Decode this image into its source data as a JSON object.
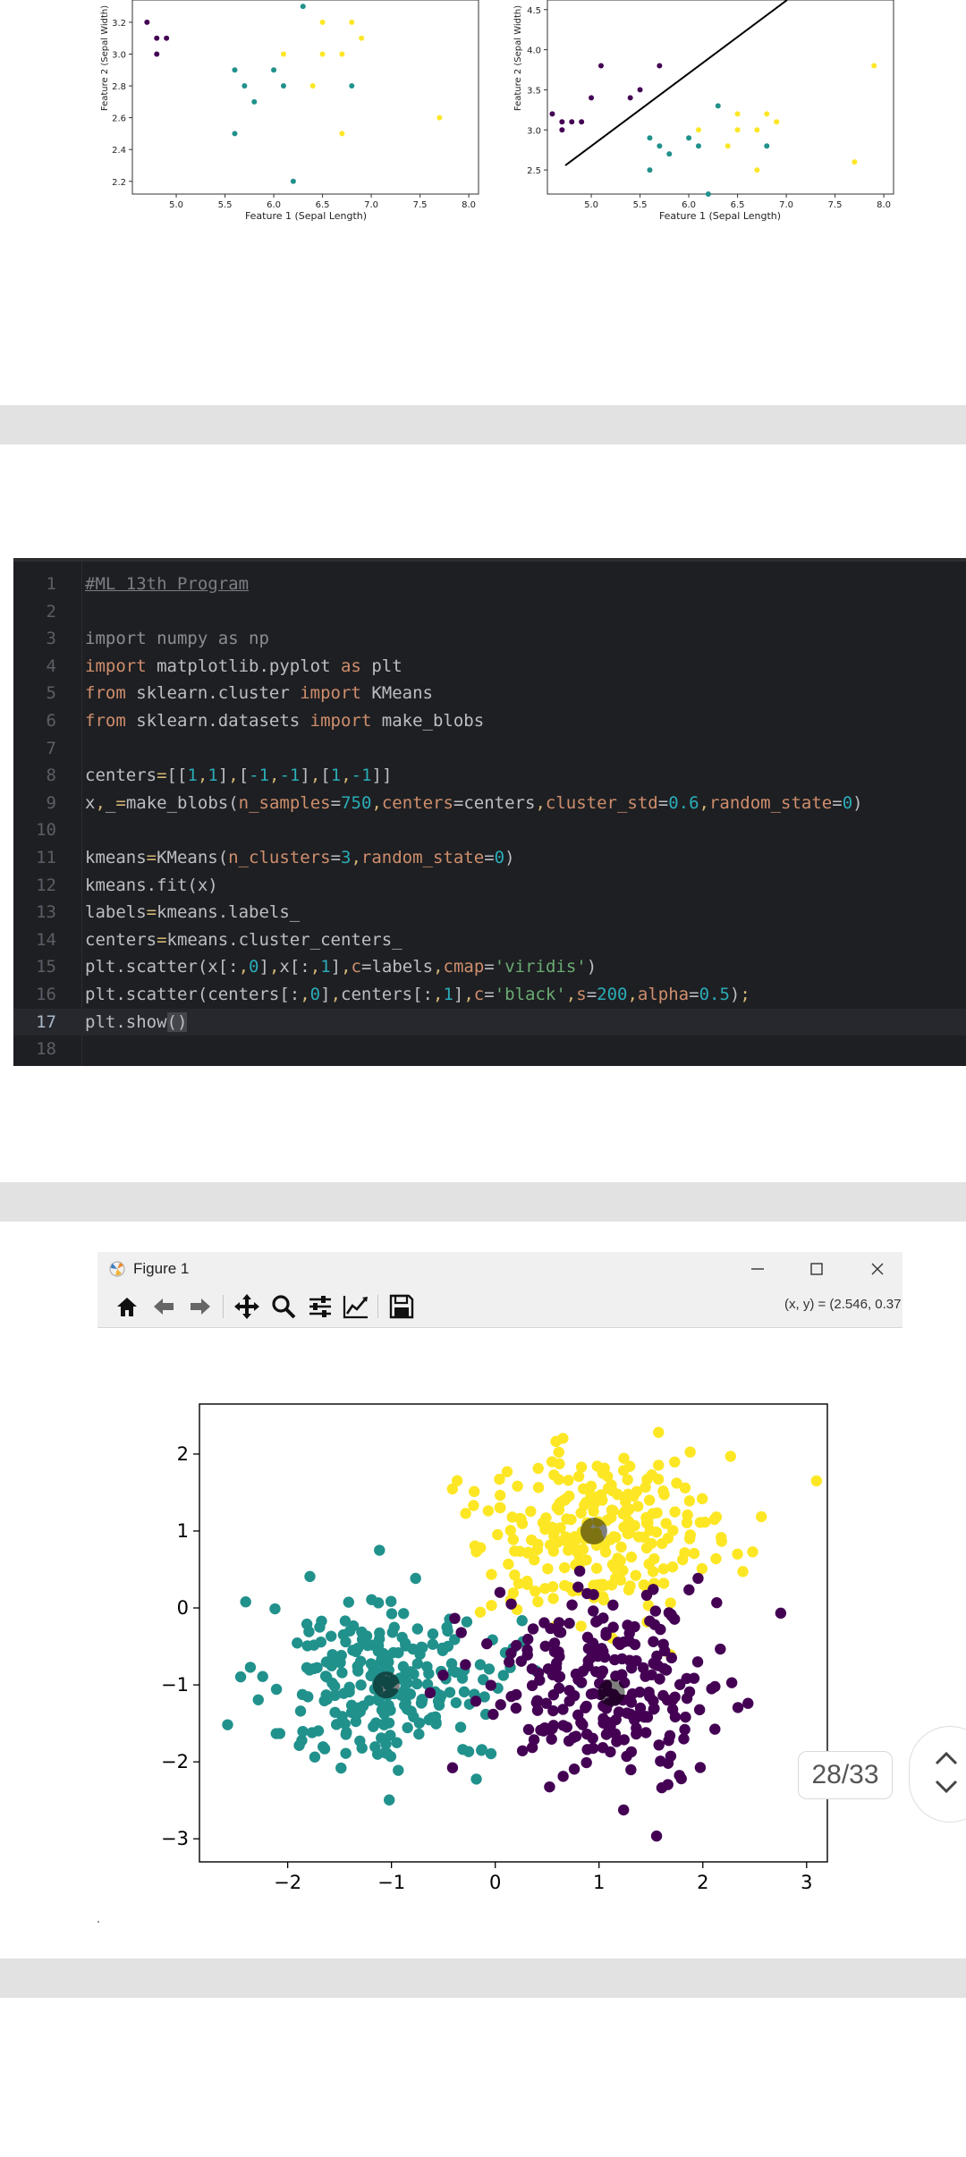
{
  "top_plots": {
    "left": {
      "xlabel": "Feature 1 (Sepal Length)",
      "ylabel": "Feature 2 (Sepal Width)",
      "xticks": [
        "5.0",
        "5.5",
        "6.0",
        "6.5",
        "7.0",
        "7.5",
        "8.0"
      ],
      "yticks": [
        "2.2",
        "2.4",
        "2.6",
        "2.8",
        "3.0",
        "3.2"
      ]
    },
    "right": {
      "xlabel": "Feature 1 (Sepal Length)",
      "ylabel": "Feature 2 (Sepal Width)",
      "xticks": [
        "5.0",
        "5.5",
        "6.0",
        "6.5",
        "7.0",
        "7.5",
        "8.0"
      ],
      "yticks": [
        "2.5",
        "3.0",
        "3.5",
        "4.0",
        "4.5"
      ]
    }
  },
  "editor": {
    "lines": [
      {
        "n": "1",
        "tokens": [
          {
            "t": "#ML 13th Program",
            "c": "t-c"
          }
        ]
      },
      {
        "n": "2",
        "tokens": []
      },
      {
        "n": "3",
        "tokens": [
          {
            "t": "import numpy as np",
            "c": "t-kw-dim"
          }
        ]
      },
      {
        "n": "4",
        "tokens": [
          {
            "t": "import",
            "c": "t-k"
          },
          {
            "t": " matplotlib.pyplot ",
            "c": ""
          },
          {
            "t": "as",
            "c": "t-k"
          },
          {
            "t": " plt",
            "c": ""
          }
        ]
      },
      {
        "n": "5",
        "tokens": [
          {
            "t": "from",
            "c": "t-k"
          },
          {
            "t": " sklearn.cluster ",
            "c": ""
          },
          {
            "t": "import",
            "c": "t-k"
          },
          {
            "t": " KMeans",
            "c": ""
          }
        ]
      },
      {
        "n": "6",
        "tokens": [
          {
            "t": "from",
            "c": "t-k"
          },
          {
            "t": " sklearn.datasets ",
            "c": ""
          },
          {
            "t": "import",
            "c": "t-k"
          },
          {
            "t": " make_blobs",
            "c": ""
          }
        ]
      },
      {
        "n": "7",
        "tokens": []
      },
      {
        "n": "8",
        "tokens": [
          {
            "t": "centers",
            "c": ""
          },
          {
            "t": "=",
            "c": "t-u"
          },
          {
            "t": "[[",
            "c": ""
          },
          {
            "t": "1",
            "c": "t-n"
          },
          {
            "t": ",",
            "c": "t-u"
          },
          {
            "t": "1",
            "c": "t-n"
          },
          {
            "t": "]",
            "c": ""
          },
          {
            "t": ",",
            "c": "t-u"
          },
          {
            "t": "[",
            "c": ""
          },
          {
            "t": "-1",
            "c": "t-n"
          },
          {
            "t": ",",
            "c": "t-u"
          },
          {
            "t": "-1",
            "c": "t-n"
          },
          {
            "t": "]",
            "c": ""
          },
          {
            "t": ",",
            "c": "t-u"
          },
          {
            "t": "[",
            "c": ""
          },
          {
            "t": "1",
            "c": "t-n"
          },
          {
            "t": ",",
            "c": "t-u"
          },
          {
            "t": "-1",
            "c": "t-n"
          },
          {
            "t": "]]",
            "c": ""
          }
        ]
      },
      {
        "n": "9",
        "tokens": [
          {
            "t": "x",
            "c": ""
          },
          {
            "t": ",",
            "c": "t-u"
          },
          {
            "t": "_",
            "c": ""
          },
          {
            "t": "=",
            "c": "t-u"
          },
          {
            "t": "make_blobs(",
            "c": ""
          },
          {
            "t": "n_samples",
            "c": "t-k"
          },
          {
            "t": "=",
            "c": ""
          },
          {
            "t": "750",
            "c": "t-n"
          },
          {
            "t": ",",
            "c": "t-u"
          },
          {
            "t": "centers",
            "c": "t-k"
          },
          {
            "t": "=centers",
            "c": ""
          },
          {
            "t": ",",
            "c": "t-u"
          },
          {
            "t": "cluster_std",
            "c": "t-k"
          },
          {
            "t": "=",
            "c": ""
          },
          {
            "t": "0.6",
            "c": "t-n"
          },
          {
            "t": ",",
            "c": "t-u"
          },
          {
            "t": "random_state",
            "c": "t-k"
          },
          {
            "t": "=",
            "c": ""
          },
          {
            "t": "0",
            "c": "t-n"
          },
          {
            "t": ")",
            "c": ""
          }
        ]
      },
      {
        "n": "10",
        "tokens": []
      },
      {
        "n": "11",
        "tokens": [
          {
            "t": "kmeans",
            "c": ""
          },
          {
            "t": "=",
            "c": "t-u"
          },
          {
            "t": "KMeans(",
            "c": ""
          },
          {
            "t": "n_clusters",
            "c": "t-k"
          },
          {
            "t": "=",
            "c": ""
          },
          {
            "t": "3",
            "c": "t-n"
          },
          {
            "t": ",",
            "c": "t-u"
          },
          {
            "t": "random_state",
            "c": "t-k"
          },
          {
            "t": "=",
            "c": ""
          },
          {
            "t": "0",
            "c": "t-n"
          },
          {
            "t": ")",
            "c": ""
          }
        ]
      },
      {
        "n": "12",
        "tokens": [
          {
            "t": "kmeans.fit(x)",
            "c": ""
          }
        ]
      },
      {
        "n": "13",
        "tokens": [
          {
            "t": "labels",
            "c": ""
          },
          {
            "t": "=",
            "c": "t-u"
          },
          {
            "t": "kmeans.labels_",
            "c": ""
          }
        ]
      },
      {
        "n": "14",
        "tokens": [
          {
            "t": "centers",
            "c": ""
          },
          {
            "t": "=",
            "c": "t-u"
          },
          {
            "t": "kmeans.cluster_centers_",
            "c": ""
          }
        ]
      },
      {
        "n": "15",
        "tokens": [
          {
            "t": "plt.scatter(x[:",
            "c": ""
          },
          {
            "t": ",",
            "c": "t-u"
          },
          {
            "t": "0",
            "c": "t-n"
          },
          {
            "t": "]",
            "c": ""
          },
          {
            "t": ",",
            "c": "t-u"
          },
          {
            "t": "x[:",
            "c": ""
          },
          {
            "t": ",",
            "c": "t-u"
          },
          {
            "t": "1",
            "c": "t-n"
          },
          {
            "t": "]",
            "c": ""
          },
          {
            "t": ",",
            "c": "t-u"
          },
          {
            "t": "c",
            "c": "t-k"
          },
          {
            "t": "=labels",
            "c": ""
          },
          {
            "t": ",",
            "c": "t-u"
          },
          {
            "t": "cmap",
            "c": "t-k"
          },
          {
            "t": "=",
            "c": ""
          },
          {
            "t": "'viridis'",
            "c": "t-s"
          },
          {
            "t": ")",
            "c": ""
          }
        ]
      },
      {
        "n": "16",
        "tokens": [
          {
            "t": "plt.scatter(centers[:",
            "c": ""
          },
          {
            "t": ",",
            "c": "t-u"
          },
          {
            "t": "0",
            "c": "t-n"
          },
          {
            "t": "]",
            "c": ""
          },
          {
            "t": ",",
            "c": "t-u"
          },
          {
            "t": "centers[:",
            "c": ""
          },
          {
            "t": ",",
            "c": "t-u"
          },
          {
            "t": "1",
            "c": "t-n"
          },
          {
            "t": "]",
            "c": ""
          },
          {
            "t": ",",
            "c": "t-u"
          },
          {
            "t": "c",
            "c": "t-k"
          },
          {
            "t": "=",
            "c": ""
          },
          {
            "t": "'black'",
            "c": "t-s"
          },
          {
            "t": ",",
            "c": "t-u"
          },
          {
            "t": "s",
            "c": "t-k"
          },
          {
            "t": "=",
            "c": ""
          },
          {
            "t": "200",
            "c": "t-n"
          },
          {
            "t": ",",
            "c": "t-u"
          },
          {
            "t": "alpha",
            "c": "t-k"
          },
          {
            "t": "=",
            "c": ""
          },
          {
            "t": "0.5",
            "c": "t-n"
          },
          {
            "t": ")",
            "c": ""
          },
          {
            "t": ";",
            "c": "t-u"
          }
        ]
      },
      {
        "n": "17",
        "tokens": [
          {
            "t": "plt.show",
            "c": ""
          },
          {
            "t": "()",
            "c": "caret-box"
          }
        ],
        "active": true
      },
      {
        "n": "18",
        "tokens": []
      }
    ]
  },
  "figure_window": {
    "title": "Figure 1",
    "coords": "(x, y) = (2.546, 0.37",
    "toolbar": [
      "home-icon",
      "back-arrow-icon",
      "forward-arrow-icon",
      "pan-icon",
      "zoom-icon",
      "subplots-config-icon",
      "edit-axes-icon",
      "save-icon"
    ]
  },
  "chart_data": {
    "type": "scatter",
    "title": "",
    "xlabel": "",
    "ylabel": "",
    "xlim": [
      -2.85,
      3.2
    ],
    "ylim": [
      -3.3,
      2.65
    ],
    "xticks": [
      "−2",
      "−1",
      "0",
      "1",
      "2",
      "3"
    ],
    "yticks": [
      "−3",
      "−2",
      "−1",
      "0",
      "1",
      "2"
    ],
    "n_points_total": 750,
    "clusters": [
      {
        "color": "#fde725",
        "center": [
          1.0,
          1.0
        ],
        "std": 0.6,
        "n": 250
      },
      {
        "color": "#21918c",
        "center": [
          -1.0,
          -1.0
        ],
        "std": 0.6,
        "n": 250
      },
      {
        "color": "#440154",
        "center": [
          1.0,
          -1.0
        ],
        "std": 0.6,
        "n": 250
      }
    ],
    "centroids": {
      "color": "#000000",
      "alpha": 0.5,
      "points": [
        [
          0.95,
          1.0
        ],
        [
          -1.05,
          -1.0
        ],
        [
          1.12,
          -1.1
        ]
      ]
    }
  },
  "page_counter": {
    "text": "28/33"
  }
}
